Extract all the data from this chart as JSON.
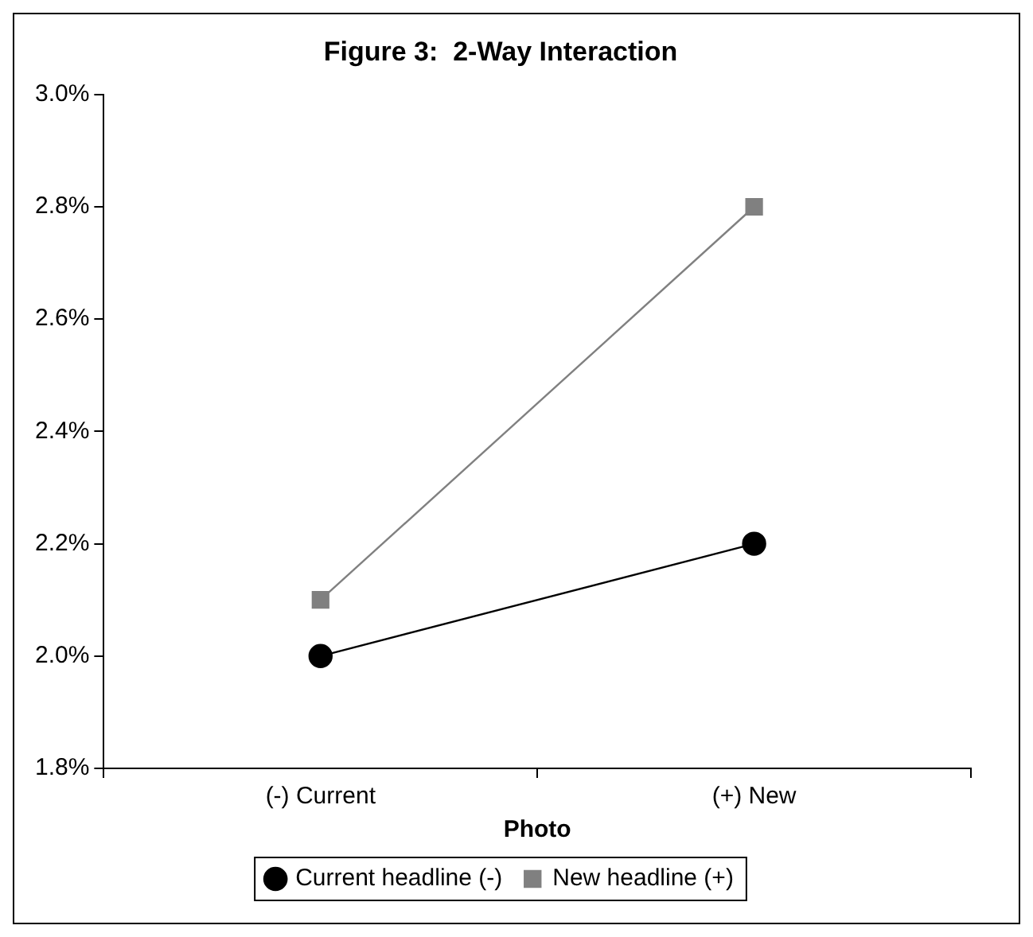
{
  "chart_data": {
    "type": "line",
    "title": "Figure 3:  2-Way Interaction",
    "xlabel": "Photo",
    "categories": [
      "(-) Current",
      "(+) New"
    ],
    "series": [
      {
        "name": "Current headline (-)",
        "color": "#000000",
        "marker": "circle",
        "values": [
          2.0,
          2.2
        ]
      },
      {
        "name": "New headline (+)",
        "color": "#808080",
        "marker": "square",
        "values": [
          2.1,
          2.8
        ]
      }
    ],
    "ylim": [
      1.8,
      3.0
    ],
    "yticks": [
      {
        "value": 1.8,
        "label": "1.8%"
      },
      {
        "value": 2.0,
        "label": "2.0%"
      },
      {
        "value": 2.2,
        "label": "2.2%"
      },
      {
        "value": 2.4,
        "label": "2.4%"
      },
      {
        "value": 2.6,
        "label": "2.6%"
      },
      {
        "value": 2.8,
        "label": "2.8%"
      },
      {
        "value": 3.0,
        "label": "3.0%"
      }
    ],
    "legend": "bottom",
    "line_style": "solid"
  }
}
